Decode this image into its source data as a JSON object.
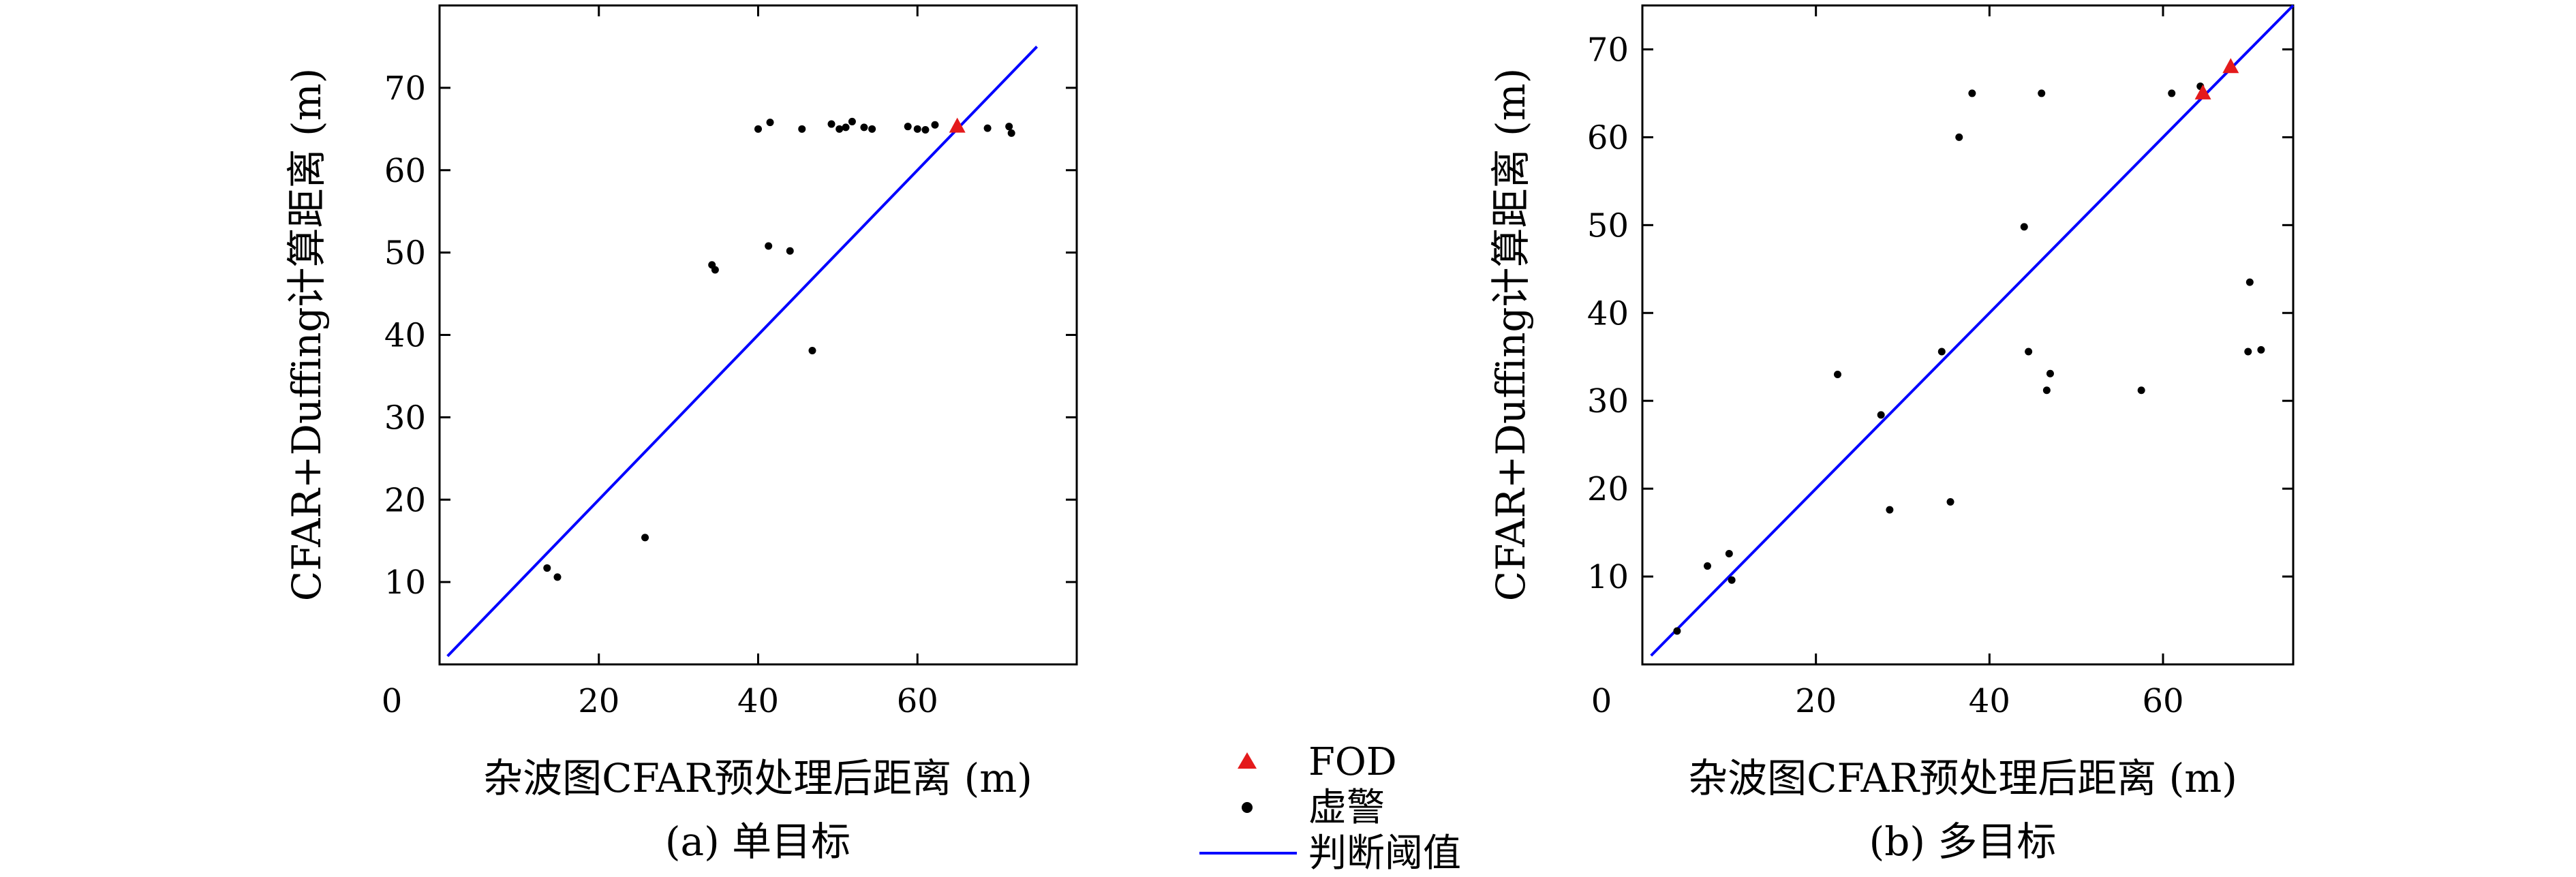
{
  "legend": {
    "entries": [
      {
        "label": "FOD",
        "marker": "triangle",
        "color": "#e41a1c"
      },
      {
        "label": "虚警",
        "marker": "dot",
        "color": "#000000"
      },
      {
        "label": "判断阈值",
        "marker": "line",
        "color": "#0000ff"
      }
    ]
  },
  "chart_data": [
    {
      "type": "scatter",
      "caption": "(a) 单目标",
      "xlabel": "杂波图CFAR预处理后距离 (m)",
      "ylabel": "CFAR+Duffing计算距离 (m)",
      "xlim": [
        0,
        80
      ],
      "ylim": [
        0,
        80
      ],
      "xticks": [
        0,
        20,
        40,
        60
      ],
      "yticks": [
        10,
        20,
        30,
        40,
        50,
        60,
        70
      ],
      "threshold_line": {
        "name": "判断阈值",
        "color": "#0000ff",
        "x": [
          1,
          75
        ],
        "y": [
          1,
          75
        ]
      },
      "series": [
        {
          "name": "虚警",
          "color": "#000000",
          "marker": "dot",
          "points": [
            [
              13.5,
              11.7
            ],
            [
              14.8,
              10.6
            ],
            [
              25.8,
              15.4
            ],
            [
              34.2,
              48.5
            ],
            [
              34.6,
              47.9
            ],
            [
              41.3,
              50.8
            ],
            [
              44,
              50.2
            ],
            [
              46.8,
              38.1
            ],
            [
              40,
              65
            ],
            [
              41.5,
              65.8
            ],
            [
              45.5,
              65
            ],
            [
              49.2,
              65.6
            ],
            [
              50.2,
              65
            ],
            [
              51,
              65.2
            ],
            [
              51.8,
              65.9
            ],
            [
              53.3,
              65.2
            ],
            [
              54.3,
              65
            ],
            [
              58.8,
              65.3
            ],
            [
              60,
              65
            ],
            [
              61,
              64.9
            ],
            [
              62.2,
              65.5
            ],
            [
              68.8,
              65.1
            ],
            [
              71.5,
              65.3
            ],
            [
              71.8,
              64.5
            ]
          ]
        },
        {
          "name": "FOD",
          "color": "#e41a1c",
          "marker": "triangle",
          "points": [
            [
              65,
              65.3
            ]
          ]
        }
      ]
    },
    {
      "type": "scatter",
      "caption": "(b) 多目标",
      "xlabel": "杂波图CFAR预处理后距离 (m)",
      "ylabel": "CFAR+Duffing计算距离 (m)",
      "xlim": [
        0,
        75
      ],
      "ylim": [
        0,
        75
      ],
      "xticks": [
        0,
        20,
        40,
        60
      ],
      "yticks": [
        10,
        20,
        30,
        40,
        50,
        60,
        70
      ],
      "threshold_line": {
        "name": "判断阈值",
        "color": "#0000ff",
        "x": [
          1,
          75
        ],
        "y": [
          1,
          75
        ]
      },
      "series": [
        {
          "name": "虚警",
          "color": "#000000",
          "marker": "dot",
          "points": [
            [
              4,
              3.8
            ],
            [
              7.5,
              11.2
            ],
            [
              10,
              12.6
            ],
            [
              10.3,
              9.6
            ],
            [
              22.5,
              33
            ],
            [
              27.5,
              28.4
            ],
            [
              28.5,
              17.6
            ],
            [
              34.5,
              35.6
            ],
            [
              35.5,
              18.5
            ],
            [
              36.5,
              60
            ],
            [
              38,
              65
            ],
            [
              44,
              49.8
            ],
            [
              44.5,
              35.6
            ],
            [
              46,
              65
            ],
            [
              46.6,
              31.2
            ],
            [
              47,
              33.1
            ],
            [
              57.5,
              31.2
            ],
            [
              61,
              65
            ],
            [
              64.3,
              65.8
            ],
            [
              70,
              43.5
            ],
            [
              69.8,
              35.6
            ],
            [
              71.3,
              35.8
            ]
          ]
        },
        {
          "name": "FOD",
          "color": "#e41a1c",
          "marker": "triangle",
          "points": [
            [
              64.6,
              65
            ],
            [
              67.8,
              68
            ]
          ]
        }
      ]
    }
  ]
}
